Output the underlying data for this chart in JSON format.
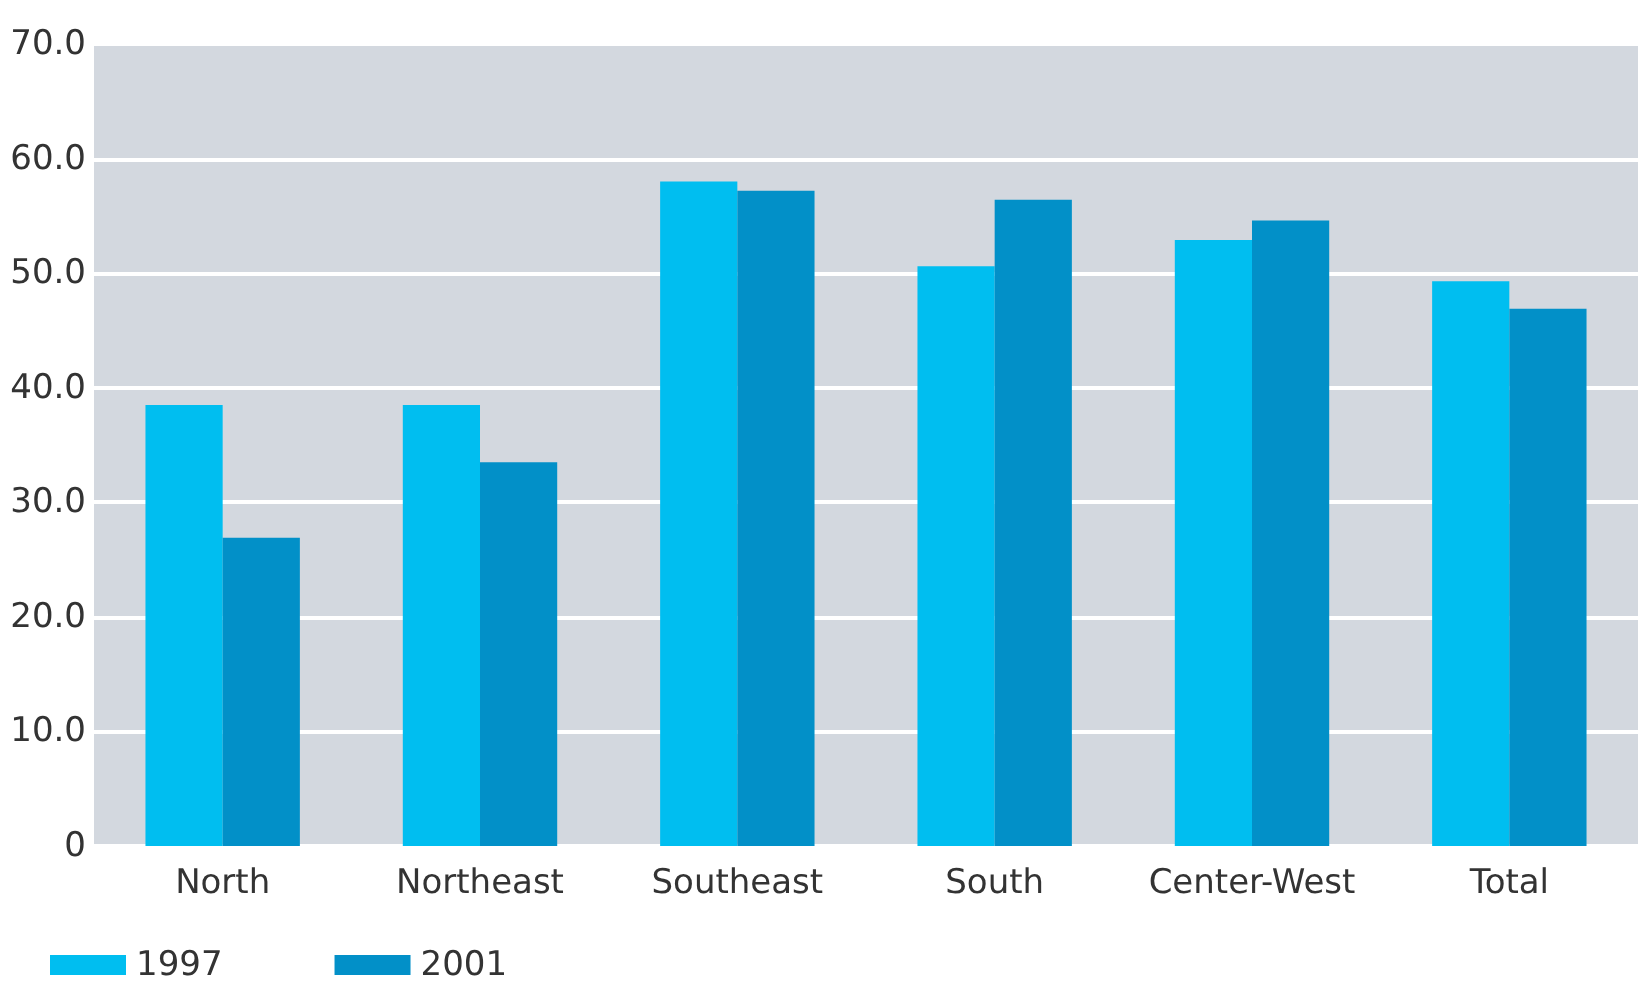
{
  "chart_data": {
    "type": "bar",
    "categories": [
      "North",
      "Northeast",
      "Southeast",
      "South",
      "Center-West",
      "Total"
    ],
    "series": [
      {
        "name": "1997",
        "color": "#00bef0",
        "values": [
          38.5,
          38.5,
          58.0,
          50.6,
          52.9,
          49.3
        ]
      },
      {
        "name": "2001",
        "color": "#0290c8",
        "values": [
          26.9,
          33.5,
          57.2,
          56.4,
          54.6,
          46.9
        ]
      }
    ],
    "ylim": [
      0,
      70
    ],
    "yticks": [
      {
        "value": 0,
        "label": "0"
      },
      {
        "value": 10,
        "label": "10.0"
      },
      {
        "value": 20,
        "label": "20.0"
      },
      {
        "value": 30,
        "label": "30.0"
      },
      {
        "value": 40,
        "label": "40.0"
      },
      {
        "value": 50,
        "label": "50.0"
      },
      {
        "value": 60,
        "label": "60.0"
      },
      {
        "value": 70,
        "label": "70.0"
      }
    ],
    "grid": "y",
    "legend": "bottom left"
  }
}
